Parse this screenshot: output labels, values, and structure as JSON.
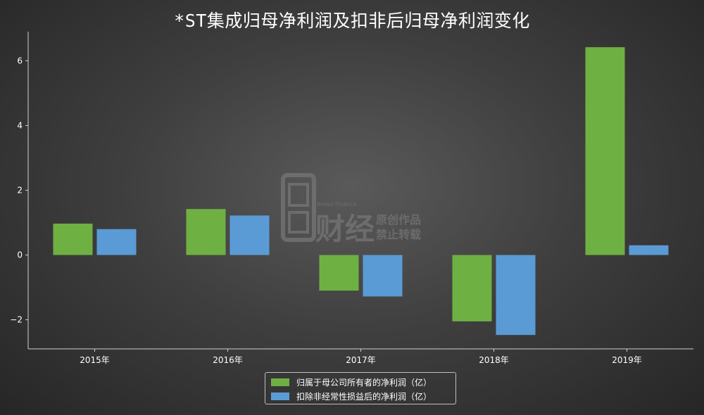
{
  "colors": {
    "series1": "#6fb043",
    "series2": "#5b9bd5",
    "axis": "#d0d0d0",
    "text": "#ffffff"
  },
  "watermark": {
    "brand_small": "Bread Finance",
    "brand_big": "财经",
    "line1": "原创作品",
    "line2": "禁止转载"
  },
  "chart_data": {
    "type": "bar",
    "title": "*ST集成归母净利润及扣非后归母净利润变化",
    "categories": [
      "2015年",
      "2016年",
      "2017年",
      "2018年",
      "2019年"
    ],
    "series": [
      {
        "name": "归属于母公司所有者的净利润（亿）",
        "values": [
          0.97,
          1.42,
          -1.1,
          -2.05,
          6.42
        ]
      },
      {
        "name": "扣除非经常性损益后的净利润（亿）",
        "values": [
          0.8,
          1.22,
          -1.28,
          -2.47,
          0.3
        ]
      }
    ],
    "ylim": [
      -2.9,
      6.9
    ],
    "yticks": [
      -2,
      0,
      2,
      4,
      6
    ],
    "ytick_labels": [
      "−2",
      "0",
      "2",
      "4",
      "6"
    ],
    "xlabel": "",
    "ylabel": "",
    "grid": false,
    "legend": "bottom-center"
  }
}
